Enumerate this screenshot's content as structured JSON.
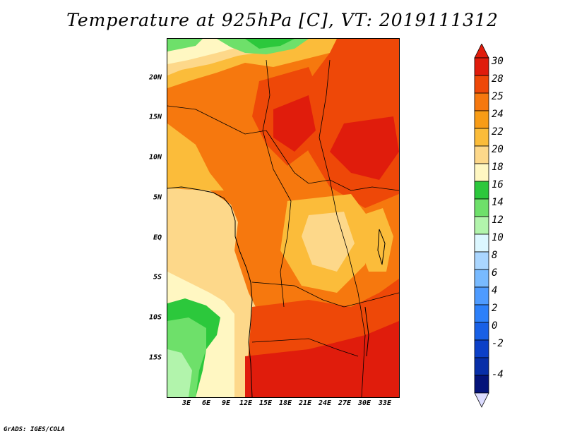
{
  "title": "Temperature at 925hPa [C], VT: 2019111312",
  "credit": "GrADS: IGES/COLA",
  "map": {
    "lat_ticks": [
      "20N",
      "15N",
      "10N",
      "5N",
      "EQ",
      "5S",
      "10S",
      "15S"
    ],
    "lon_ticks": [
      "3E",
      "6E",
      "9E",
      "12E",
      "15E",
      "18E",
      "21E",
      "24E",
      "27E",
      "30E",
      "33E"
    ],
    "lon_range": [
      0,
      35
    ],
    "lat_range": [
      -20,
      25
    ]
  },
  "colorbar": {
    "labels": [
      "30",
      "28",
      "25",
      "24",
      "22",
      "20",
      "18",
      "16",
      "14",
      "12",
      "10",
      "8",
      "6",
      "4",
      "2",
      "0",
      "-2",
      "-4"
    ],
    "colors": [
      "#e01c0c",
      "#ee4808",
      "#f6780e",
      "#f89c16",
      "#fbbc3a",
      "#fdd88a",
      "#fff7c2",
      "#2cc83c",
      "#6ee06a",
      "#b2f4ac",
      "#dcf7ff",
      "#aad6ff",
      "#78baff",
      "#4e9bff",
      "#2c80fa",
      "#1860e6",
      "#0c40c8",
      "#072ea8",
      "#04137a"
    ],
    "under_color": "#dcdcff",
    "over_color": "#e01c0c"
  }
}
